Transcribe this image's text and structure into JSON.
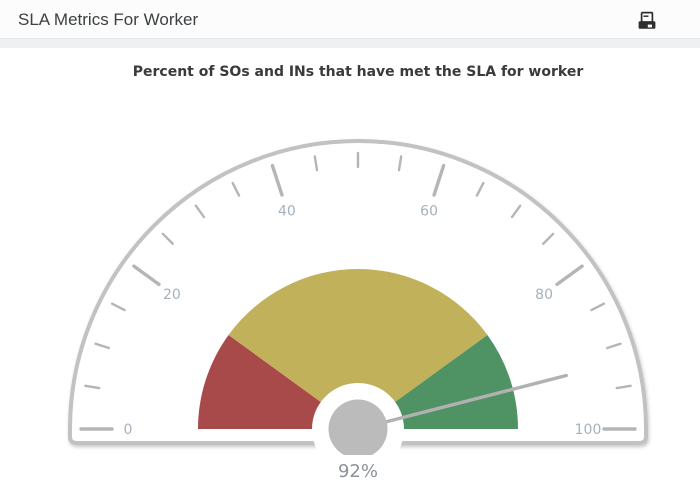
{
  "header": {
    "title": "SLA Metrics For Worker",
    "icons": [
      "printer-icon"
    ]
  },
  "chart_data": {
    "type": "gauge",
    "title": "Percent of SOs and INs that have met the SLA for worker",
    "min": 0,
    "max": 100,
    "value": 92,
    "value_label": "92%",
    "major_ticks": [
      0,
      20,
      40,
      60,
      80,
      100
    ],
    "major_tick_labels": [
      "0",
      "20",
      "40",
      "60",
      "80",
      "100"
    ],
    "minor_tick_step": 5,
    "ranges": [
      {
        "from": 0,
        "to": 20,
        "color": "#a94a4a",
        "label": "red"
      },
      {
        "from": 20,
        "to": 80,
        "color": "#c1b15a",
        "label": "yellow"
      },
      {
        "from": 80,
        "to": 100,
        "color": "#4f9364",
        "label": "green"
      }
    ],
    "colors": {
      "face": "#ffffff",
      "border": "#c2c2c2",
      "tick": "#b5b5b5",
      "tick_label": "#a5b1bc",
      "needle": "#b1b1b1",
      "hub": "#bbbbbb",
      "value_label": "#8b9299"
    },
    "layout_hints": {
      "shape": "semicircle",
      "start_angle_deg": 180,
      "end_angle_deg": 0,
      "grid": false,
      "legend": false
    }
  }
}
